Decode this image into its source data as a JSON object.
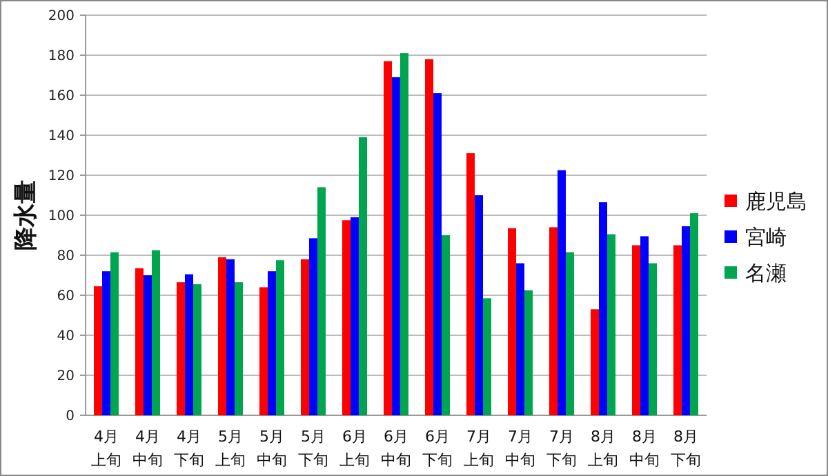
{
  "chart_data": {
    "type": "bar",
    "ylabel": "降水量",
    "categories": [
      "4月上旬",
      "4月中旬",
      "4月下旬",
      "5月上旬",
      "5月中旬",
      "5月下旬",
      "6月上旬",
      "6月中旬",
      "6月下旬",
      "7月上旬",
      "7月中旬",
      "7月下旬",
      "8月上旬",
      "8月中旬",
      "8月下旬"
    ],
    "series": [
      {
        "name": "鹿児島",
        "color": "#ff0000",
        "values": [
          64.5,
          73.5,
          66.5,
          79,
          64,
          78,
          97.5,
          177,
          178,
          131,
          93.5,
          94,
          53,
          85,
          85
        ]
      },
      {
        "name": "宮崎",
        "color": "#0000ff",
        "values": [
          72,
          70,
          70.5,
          78,
          72,
          88.5,
          99,
          169,
          161,
          110,
          76,
          122.5,
          106.5,
          89.5,
          94.5
        ]
      },
      {
        "name": "名瀬",
        "color": "#00a550",
        "values": [
          81.5,
          82.5,
          65.5,
          66.5,
          77.5,
          114,
          139,
          181,
          90,
          58.5,
          62.5,
          81.5,
          90.5,
          76,
          101
        ]
      }
    ],
    "ylim": [
      0,
      200
    ],
    "yticks": [
      0,
      20,
      40,
      60,
      80,
      100,
      120,
      140,
      160,
      180,
      200
    ],
    "grid": "y",
    "legend": "right"
  }
}
